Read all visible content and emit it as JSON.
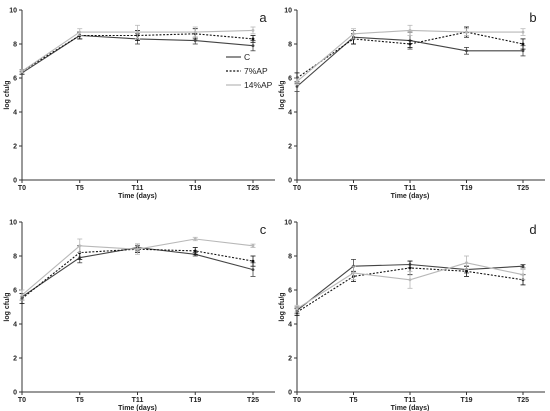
{
  "chart_data": [
    {
      "type": "line",
      "panel_label": "a",
      "categories": [
        "T0",
        "T5",
        "T11",
        "T19",
        "T25"
      ],
      "xlabel": "Time (days)",
      "ylabel": "log cfu/g",
      "ylim": [
        0,
        10
      ],
      "yticks": [
        "0",
        "2",
        "4",
        "6",
        "8",
        "10"
      ],
      "grid": false,
      "series": [
        {
          "name": "C",
          "values": [
            6.3,
            8.5,
            8.3,
            8.2,
            7.9
          ],
          "errors": [
            0.1,
            0.2,
            0.3,
            0.2,
            0.3
          ]
        },
        {
          "name": "7%AP",
          "values": [
            6.4,
            8.5,
            8.5,
            8.6,
            8.3
          ],
          "errors": [
            0.1,
            0.2,
            0.3,
            0.3,
            0.2
          ]
        },
        {
          "name": "14%AP",
          "values": [
            6.4,
            8.7,
            8.7,
            8.7,
            8.8
          ],
          "errors": [
            0.1,
            0.2,
            0.4,
            0.3,
            0.2
          ]
        }
      ]
    },
    {
      "type": "line",
      "panel_label": "b",
      "categories": [
        "T0",
        "T5",
        "T11",
        "T19",
        "T25"
      ],
      "xlabel": "Time (days)",
      "ylabel": "log cfu/g",
      "ylim": [
        0,
        10
      ],
      "yticks": [
        "0",
        "2",
        "4",
        "6",
        "8",
        "10"
      ],
      "grid": false,
      "series": [
        {
          "name": "C",
          "values": [
            5.5,
            8.4,
            8.2,
            7.6,
            7.6
          ],
          "errors": [
            0.3,
            0.4,
            0.5,
            0.2,
            0.3
          ]
        },
        {
          "name": "7%AP",
          "values": [
            6.0,
            8.3,
            8.0,
            8.7,
            8.0
          ],
          "errors": [
            0.3,
            0.3,
            0.2,
            0.3,
            0.3
          ]
        },
        {
          "name": "14%AP",
          "values": [
            5.8,
            8.6,
            8.8,
            8.7,
            8.7
          ],
          "errors": [
            0.2,
            0.3,
            0.3,
            0.2,
            0.2
          ]
        }
      ]
    },
    {
      "type": "line",
      "panel_label": "c",
      "categories": [
        "T0",
        "T5",
        "T11",
        "T19",
        "T25"
      ],
      "xlabel": "Time (days)",
      "ylabel": "log cfu/g",
      "ylim": [
        0,
        10
      ],
      "yticks": [
        "0",
        "2",
        "4",
        "6",
        "8",
        "10"
      ],
      "grid": false,
      "series": [
        {
          "name": "C",
          "values": [
            5.6,
            7.9,
            8.5,
            8.1,
            7.2
          ],
          "errors": [
            0.2,
            0.3,
            0.2,
            0.1,
            0.4
          ]
        },
        {
          "name": "7%AP",
          "values": [
            5.5,
            8.2,
            8.4,
            8.3,
            7.7
          ],
          "errors": [
            0.3,
            0.4,
            0.2,
            0.2,
            0.3
          ]
        },
        {
          "name": "14%AP",
          "values": [
            5.7,
            8.6,
            8.4,
            9.0,
            8.6
          ],
          "errors": [
            0.3,
            0.4,
            0.3,
            0.1,
            0.1
          ]
        }
      ]
    },
    {
      "type": "line",
      "panel_label": "d",
      "categories": [
        "T0",
        "T5",
        "T11",
        "T19",
        "T25"
      ],
      "xlabel": "Time (days)",
      "ylabel": "log cfu/g",
      "ylim": [
        0,
        10
      ],
      "yticks": [
        "0",
        "2",
        "4",
        "6",
        "8",
        "10"
      ],
      "grid": false,
      "series": [
        {
          "name": "C",
          "values": [
            4.8,
            7.4,
            7.5,
            7.2,
            7.4
          ],
          "errors": [
            0.2,
            0.4,
            0.2,
            0.2,
            0.1
          ]
        },
        {
          "name": "7%AP",
          "values": [
            4.7,
            6.8,
            7.3,
            7.1,
            6.6
          ],
          "errors": [
            0.2,
            0.3,
            0.4,
            0.3,
            0.3
          ]
        },
        {
          "name": "14%AP",
          "values": [
            4.9,
            7.0,
            6.6,
            7.6,
            6.9
          ],
          "errors": [
            0.2,
            0.4,
            0.5,
            0.4,
            0.3
          ]
        }
      ]
    }
  ],
  "legend": {
    "entries": [
      "C",
      "7%AP",
      "14%AP"
    ],
    "placement": "right of panel a",
    "colors": {
      "C": "#444444",
      "7%AP": "#111111",
      "14%AP": "#b8b8b8"
    }
  }
}
